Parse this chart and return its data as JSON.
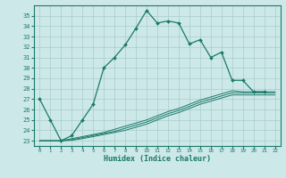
{
  "xlabel": "Humidex (Indice chaleur)",
  "x_values": [
    0,
    1,
    2,
    3,
    4,
    5,
    6,
    7,
    8,
    9,
    10,
    11,
    12,
    13,
    14,
    15,
    16,
    17,
    18,
    19,
    20,
    21,
    22
  ],
  "main_line": [
    27,
    25,
    23,
    23.5,
    25,
    26.5,
    30,
    31,
    32.2,
    33.8,
    35.5,
    34.3,
    34.5,
    34.3,
    32.3,
    32.7,
    31,
    31.5,
    28.8,
    28.8,
    27.7,
    27.7,
    null
  ],
  "line2": [
    23,
    23,
    23,
    23.2,
    23.4,
    23.6,
    23.8,
    24.1,
    24.4,
    24.7,
    25.0,
    25.4,
    25.8,
    26.1,
    26.5,
    26.9,
    27.2,
    27.5,
    27.8,
    27.7,
    27.7,
    27.7,
    27.7
  ],
  "line3": [
    23,
    23,
    23,
    23.1,
    23.3,
    23.5,
    23.7,
    23.9,
    24.2,
    24.5,
    24.8,
    25.2,
    25.6,
    25.9,
    26.3,
    26.7,
    27.0,
    27.3,
    27.6,
    27.6,
    27.6,
    27.6,
    27.6
  ],
  "line4": [
    23,
    23,
    23,
    23.05,
    23.2,
    23.4,
    23.6,
    23.8,
    24.0,
    24.3,
    24.6,
    25.0,
    25.4,
    25.7,
    26.1,
    26.5,
    26.8,
    27.1,
    27.4,
    27.4,
    27.4,
    27.4,
    27.4
  ],
  "ylim": [
    22.5,
    36
  ],
  "xlim": [
    -0.5,
    22.5
  ],
  "yticks": [
    23,
    24,
    25,
    26,
    27,
    28,
    29,
    30,
    31,
    32,
    33,
    34,
    35
  ],
  "xticks": [
    0,
    1,
    2,
    3,
    4,
    5,
    6,
    7,
    8,
    9,
    10,
    11,
    12,
    13,
    14,
    15,
    16,
    17,
    18,
    19,
    20,
    21,
    22
  ],
  "line_color": "#1a7a6a",
  "bg_color": "#cde8e8",
  "grid_color": "#a8cccc"
}
